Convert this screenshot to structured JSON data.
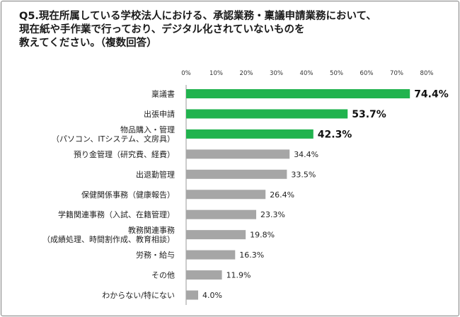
{
  "chart_data": {
    "type": "bar",
    "orientation": "horizontal",
    "title": "Q5.現在所属している学校法人における、承認業務・稟議申請業務において、\n現在紙や手作業で行っており、デジタル化されていないものを\n教えてください。（複数回答）",
    "xlim": [
      0,
      80
    ],
    "tick_labels": [
      "0%",
      "10%",
      "20%",
      "30%",
      "40%",
      "50%",
      "60%",
      "70%",
      "80%"
    ],
    "grid": false,
    "legend": "none",
    "colors": {
      "highlight": "#21b34e",
      "normal": "#a6a6a6"
    },
    "categories": [
      "稟議書",
      "出張申請",
      "物品購入・管理\n（パソコン、ITシステム、文房具）",
      "預り金管理（研究費、経費）",
      "出退勤管理",
      "保健関係事務（健康報告）",
      "学籍関連事務（入試、在籍管理）",
      "教務関連事務\n（成績処理、時間割作成、教育相談）",
      "労務・給与",
      "その他",
      "わからない/特にない"
    ],
    "values": [
      74.4,
      53.7,
      42.3,
      34.4,
      33.5,
      26.4,
      23.3,
      19.8,
      16.3,
      11.9,
      4.0
    ],
    "value_labels": [
      "74.4%",
      "53.7%",
      "42.3%",
      "34.4%",
      "33.5%",
      "26.4%",
      "23.3%",
      "19.8%",
      "16.3%",
      "11.9%",
      "4.0%"
    ],
    "highlighted": [
      true,
      true,
      true,
      false,
      false,
      false,
      false,
      false,
      false,
      false,
      false
    ]
  }
}
